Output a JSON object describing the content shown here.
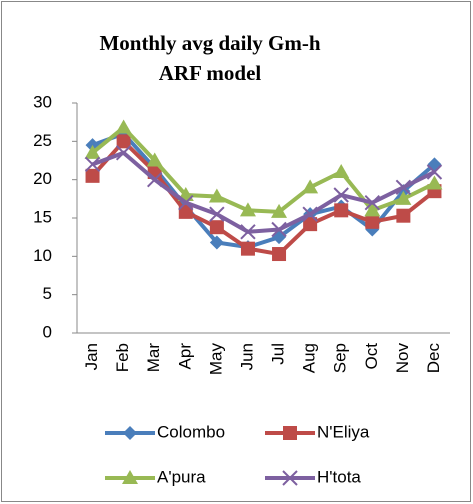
{
  "chart_data": {
    "type": "line",
    "title": [
      "Monthly avg daily Gm-h",
      "ARF model"
    ],
    "categories": [
      "Jan",
      "Feb",
      "Mar",
      "Apr",
      "May",
      "Jun",
      "Jul",
      "Aug",
      "Sep",
      "Oct",
      "Nov",
      "Dec"
    ],
    "series": [
      {
        "name": "Colombo",
        "color": "#4a7ebb",
        "marker": "diamond",
        "values": [
          24.5,
          26,
          21.5,
          16.5,
          11.8,
          11.2,
          12.5,
          15.5,
          16.5,
          13.5,
          18.5,
          22
        ]
      },
      {
        "name": "N'Eliya",
        "color": "#be4b48",
        "marker": "square",
        "values": [
          20.5,
          25,
          21,
          15.8,
          13.8,
          11,
          10.3,
          14.2,
          16,
          14.5,
          15.3,
          18.5
        ]
      },
      {
        "name": "A'pura",
        "color": "#98b954",
        "marker": "triangle",
        "values": [
          23.5,
          26.8,
          22.5,
          18,
          17.8,
          16,
          15.8,
          19,
          21,
          16,
          17.5,
          19.5
        ]
      },
      {
        "name": "H'tota",
        "color": "#7d60a0",
        "marker": "x",
        "values": [
          22,
          23.5,
          20,
          17,
          15.5,
          13.2,
          13.5,
          15.5,
          18,
          17,
          19,
          21
        ]
      }
    ],
    "ylim": [
      0,
      30
    ],
    "yticks": [
      0,
      5,
      10,
      15,
      20,
      25,
      30
    ],
    "grid": false
  }
}
